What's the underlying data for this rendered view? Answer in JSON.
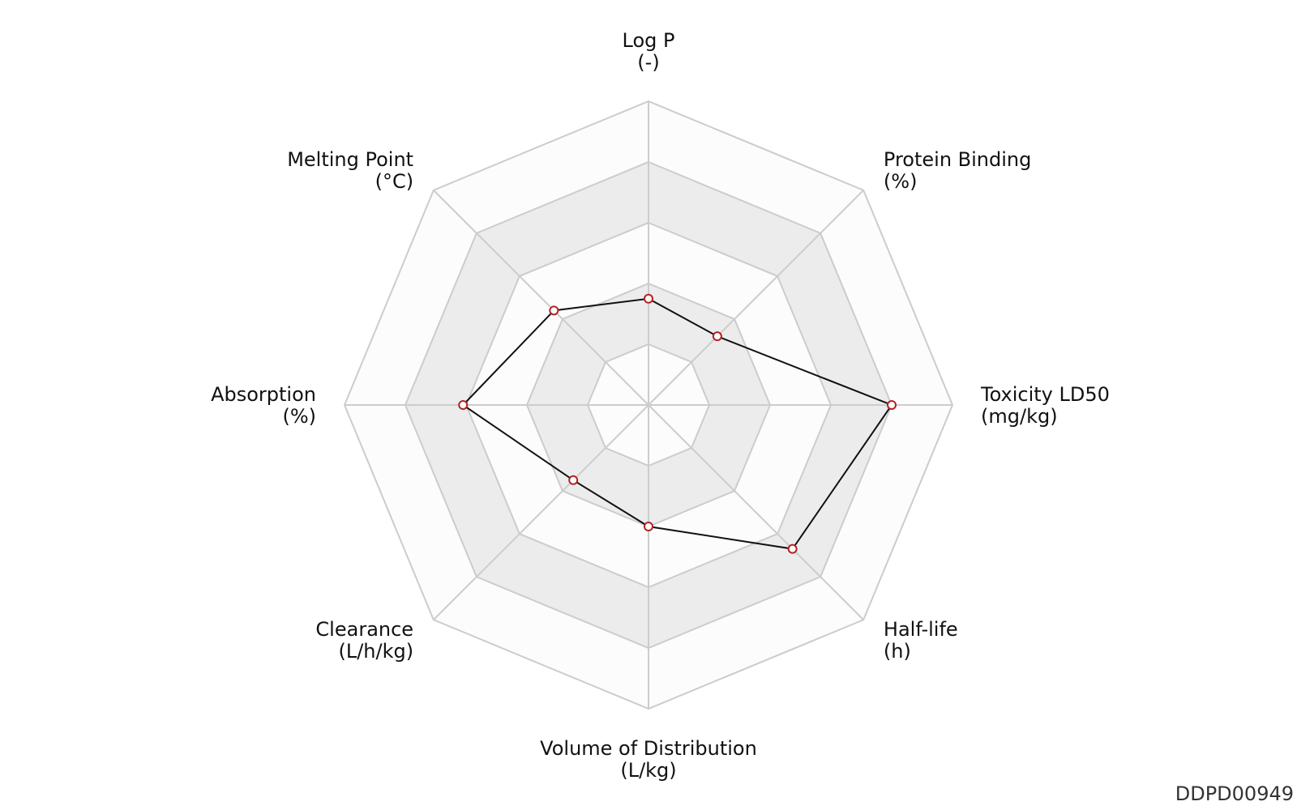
{
  "chart_data": {
    "type": "radar",
    "axes": [
      {
        "name": "Log P",
        "unit": "(-)"
      },
      {
        "name": "Protein Binding",
        "unit": "(%)"
      },
      {
        "name": "Toxicity LD50",
        "unit": "(mg/kg)"
      },
      {
        "name": "Half-life",
        "unit": "(h)"
      },
      {
        "name": "Volume of Distribution",
        "unit": "(L/kg)"
      },
      {
        "name": "Clearance",
        "unit": "(L/h/kg)"
      },
      {
        "name": "Absorption",
        "unit": "(%)"
      },
      {
        "name": "Melting Point",
        "unit": "(°C)"
      }
    ],
    "rings": 5,
    "range": [
      0,
      1
    ],
    "series": [
      {
        "values": [
          0.35,
          0.32,
          0.8,
          0.67,
          0.4,
          0.35,
          0.61,
          0.44
        ]
      }
    ],
    "grid": true,
    "alternating_bands": true
  },
  "colors": {
    "grid_line": "#cccccc",
    "band_light": "#fcfcfc",
    "band_dark": "#ececec",
    "series_line": "#111111",
    "marker_fill": "#ffffff",
    "marker_stroke": "#b22222"
  },
  "footer": {
    "chart_id": "DDPD00949"
  }
}
